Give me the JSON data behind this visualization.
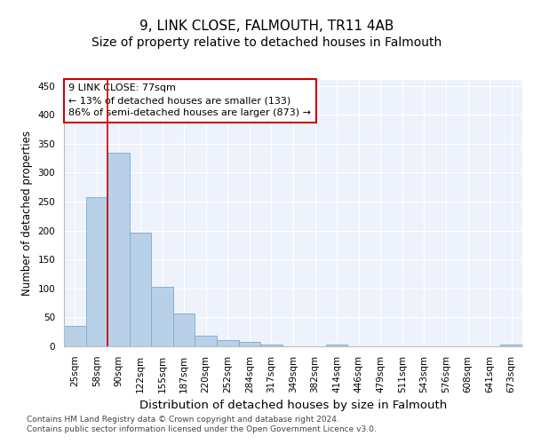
{
  "title": "9, LINK CLOSE, FALMOUTH, TR11 4AB",
  "subtitle": "Size of property relative to detached houses in Falmouth",
  "xlabel": "Distribution of detached houses by size in Falmouth",
  "ylabel": "Number of detached properties",
  "categories": [
    "25sqm",
    "58sqm",
    "90sqm",
    "122sqm",
    "155sqm",
    "187sqm",
    "220sqm",
    "252sqm",
    "284sqm",
    "317sqm",
    "349sqm",
    "382sqm",
    "414sqm",
    "446sqm",
    "479sqm",
    "511sqm",
    "543sqm",
    "576sqm",
    "608sqm",
    "641sqm",
    "673sqm"
  ],
  "values": [
    35,
    257,
    335,
    197,
    103,
    57,
    18,
    10,
    7,
    3,
    0,
    0,
    3,
    0,
    0,
    0,
    0,
    0,
    0,
    0,
    3
  ],
  "bar_color": "#b8d0e8",
  "bar_edge_color": "#7aaac8",
  "vline_x_index": 1.5,
  "vline_color": "#cc0000",
  "annotation_line1": "9 LINK CLOSE: 77sqm",
  "annotation_line2": "← 13% of detached houses are smaller (133)",
  "annotation_line3": "86% of semi-detached houses are larger (873) →",
  "annotation_box_color": "#ffffff",
  "annotation_box_edge_color": "#cc0000",
  "ylim": [
    0,
    460
  ],
  "yticks": [
    0,
    50,
    100,
    150,
    200,
    250,
    300,
    350,
    400,
    450
  ],
  "background_color": "#eef2fb",
  "grid_color": "#ffffff",
  "footer": "Contains HM Land Registry data © Crown copyright and database right 2024.\nContains public sector information licensed under the Open Government Licence v3.0.",
  "title_fontsize": 11,
  "subtitle_fontsize": 10,
  "xlabel_fontsize": 9.5,
  "ylabel_fontsize": 8.5,
  "tick_fontsize": 7.5,
  "annotation_fontsize": 8,
  "footer_fontsize": 6.5
}
